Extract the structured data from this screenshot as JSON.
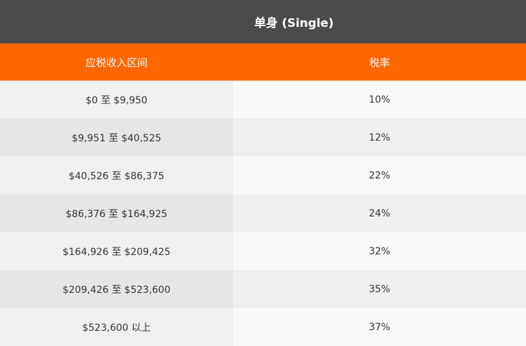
{
  "table": {
    "title": "单身 (Single)",
    "headers": {
      "range": "应税收入区间",
      "rate": "税率"
    },
    "rows": [
      {
        "range": "$0 至 $9,950",
        "rate": "10%"
      },
      {
        "range": "$9,951 至 $40,525",
        "rate": "12%"
      },
      {
        "range": "$40,526 至 $86,375",
        "rate": "22%"
      },
      {
        "range": "$86,376 至 $164,925",
        "rate": "24%"
      },
      {
        "range": "$164,926 至 $209,425",
        "rate": "32%"
      },
      {
        "range": "$209,426 至 $523,600",
        "rate": "35%"
      },
      {
        "range": "$523,600 以上",
        "rate": "37%"
      }
    ],
    "colors": {
      "title_bg": "#4b4b4b",
      "header_bg": "#ff6600"
    }
  }
}
